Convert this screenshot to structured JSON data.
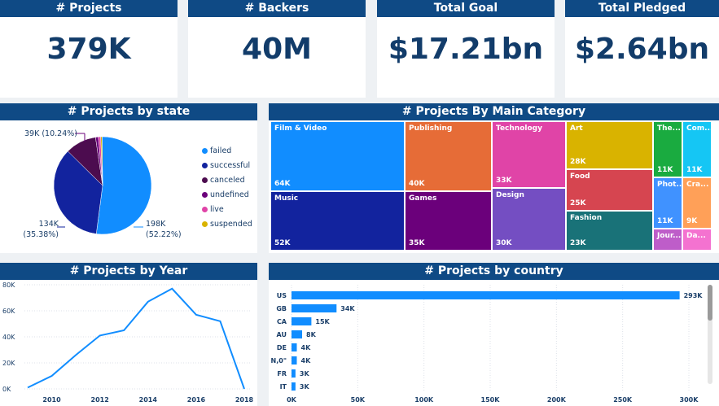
{
  "kpis": [
    {
      "title": "# Projects",
      "value": "379K"
    },
    {
      "title": "# Backers",
      "value": "40M"
    },
    {
      "title": "Total Goal",
      "value": "$17.21bn"
    },
    {
      "title": "Total Pledged",
      "value": "$2.64bn"
    }
  ],
  "state_chart": {
    "title": "# Projects by state",
    "labels": {
      "failed": [
        "198K",
        "(52.22%)"
      ],
      "successful": [
        "134K",
        "(35.38%)"
      ],
      "canceled": [
        "39K (10.24%)"
      ]
    }
  },
  "category_chart": {
    "title": "# Projects By Main Category",
    "cells": [
      {
        "name": "Film & Video",
        "value": "64K",
        "color": "#118dff"
      },
      {
        "name": "Music",
        "value": "52K",
        "color": "#12239e"
      },
      {
        "name": "Publishing",
        "value": "40K",
        "color": "#e66c37"
      },
      {
        "name": "Games",
        "value": "35K",
        "color": "#6b007b"
      },
      {
        "name": "Technology",
        "value": "33K",
        "color": "#e044a7"
      },
      {
        "name": "Design",
        "value": "30K",
        "color": "#744ec2"
      },
      {
        "name": "Art",
        "value": "28K",
        "color": "#d9b300"
      },
      {
        "name": "Food",
        "value": "25K",
        "color": "#d64550"
      },
      {
        "name": "Fashion",
        "value": "23K",
        "color": "#197278"
      },
      {
        "name": "The...",
        "value": "11K",
        "color": "#1aab40"
      },
      {
        "name": "Com...",
        "value": "11K",
        "color": "#15c6f4"
      },
      {
        "name": "Phot...",
        "value": "11K",
        "color": "#4092ff"
      },
      {
        "name": "Cra...",
        "value": "9K",
        "color": "#ffa058"
      },
      {
        "name": "Jour...",
        "value": "",
        "color": "#be5dc9"
      },
      {
        "name": "Da...",
        "value": "",
        "color": "#f472d0"
      }
    ]
  },
  "year_chart_title": "# Projects by Year",
  "country_chart_title": "# Projects by country",
  "chart_data": [
    {
      "type": "pie",
      "categories": [
        "failed",
        "successful",
        "canceled",
        "undefined",
        "live",
        "suspended"
      ],
      "values": [
        198,
        134,
        39,
        3.6,
        2.8,
        1.8
      ],
      "colors": [
        "#118dff",
        "#12239e",
        "#4c0c4f",
        "#6b007b",
        "#e044a7",
        "#d9b300"
      ],
      "legend": "right"
    },
    {
      "type": "line",
      "x": [
        2009,
        2010,
        2011,
        2012,
        2013,
        2014,
        2015,
        2016,
        2017,
        2018
      ],
      "values": [
        1,
        10,
        26,
        41,
        45,
        67,
        77,
        57,
        52,
        0
      ],
      "ylim": [
        0,
        80
      ],
      "y_ticks": [
        "0K",
        "20K",
        "40K",
        "60K",
        "80K"
      ],
      "x_ticks": [
        "2010",
        "2012",
        "2014",
        "2016",
        "2018"
      ],
      "color": "#118dff"
    },
    {
      "type": "bar",
      "orientation": "horizontal",
      "categories": [
        "US",
        "GB",
        "CA",
        "AU",
        "DE",
        "N,0\"",
        "FR",
        "IT"
      ],
      "values": [
        293,
        34,
        15,
        8,
        4,
        4,
        3,
        3
      ],
      "value_labels": [
        "293K",
        "34K",
        "15K",
        "8K",
        "4K",
        "4K",
        "3K",
        "3K"
      ],
      "xlim": [
        0,
        300
      ],
      "x_ticks": [
        "0K",
        "50K",
        "100K",
        "150K",
        "200K",
        "250K",
        "300K"
      ],
      "color": "#118dff"
    }
  ]
}
